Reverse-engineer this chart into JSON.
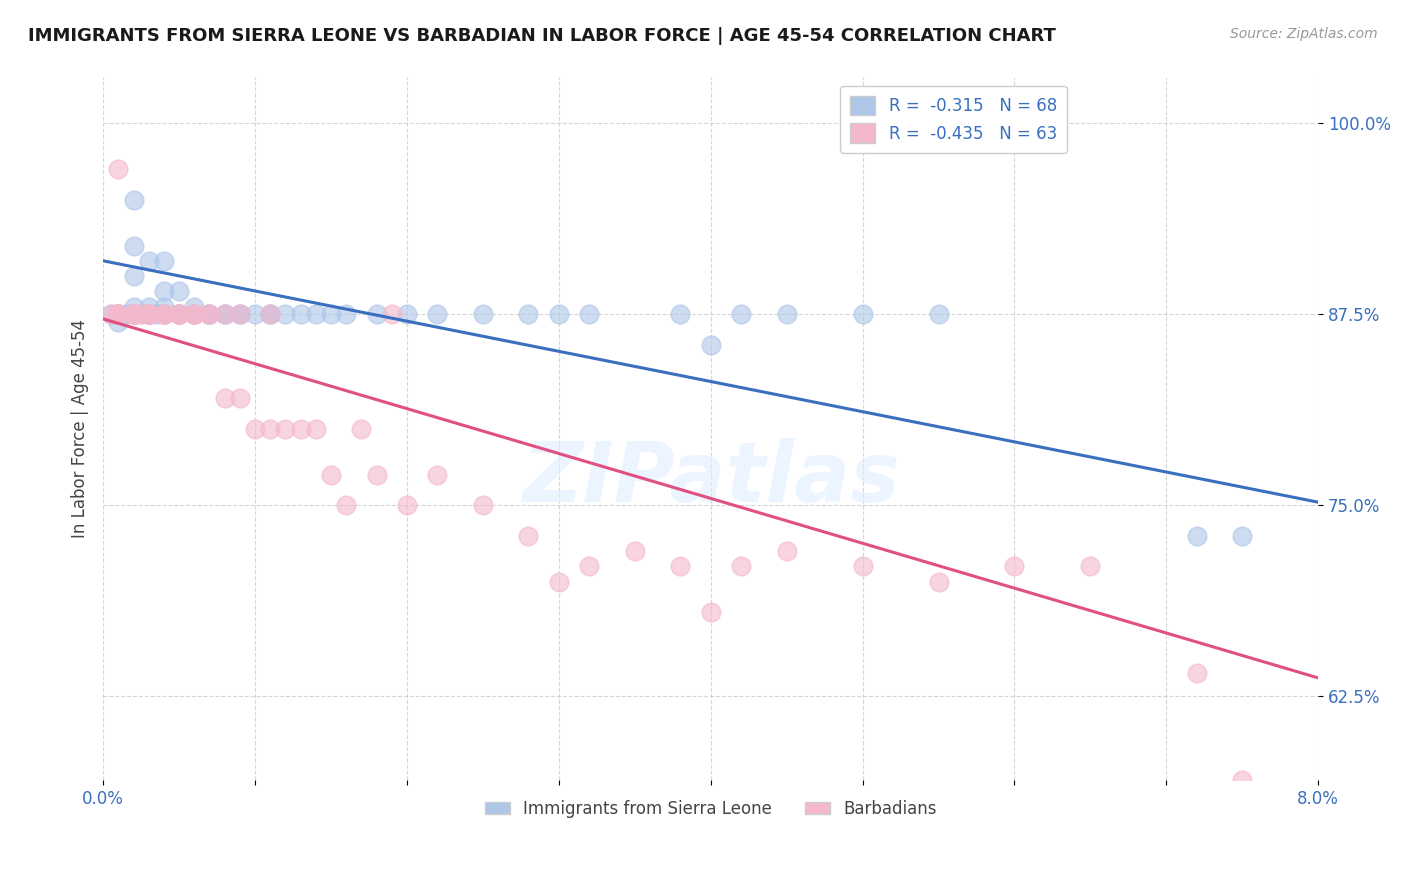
{
  "title": "IMMIGRANTS FROM SIERRA LEONE VS BARBADIAN IN LABOR FORCE | AGE 45-54 CORRELATION CHART",
  "source": "Source: ZipAtlas.com",
  "ylabel": "In Labor Force | Age 45-54",
  "x_min": 0.0,
  "x_max": 0.08,
  "y_min": 0.57,
  "y_max": 1.03,
  "x_ticks": [
    0.0,
    0.01,
    0.02,
    0.03,
    0.04,
    0.05,
    0.06,
    0.07,
    0.08
  ],
  "x_tick_labels": [
    "0.0%",
    "",
    "",
    "",
    "",
    "",
    "",
    "",
    "8.0%"
  ],
  "y_ticks": [
    0.625,
    0.75,
    0.875,
    1.0
  ],
  "y_tick_labels": [
    "62.5%",
    "75.0%",
    "87.5%",
    "100.0%"
  ],
  "legend_label_1": "Immigrants from Sierra Leone",
  "legend_label_2": "Barbadians",
  "blue_color": "#aec6e8",
  "pink_color": "#f4b8cc",
  "blue_line_color": "#3a6fbf",
  "pink_line_color": "#e05080",
  "blue_trend": [
    0.0,
    0.91,
    0.08,
    0.752
  ],
  "pink_trend": [
    0.0,
    0.872,
    0.08,
    0.637
  ],
  "blue_scatter_x": [
    0.0005,
    0.001,
    0.001,
    0.001,
    0.001,
    0.001,
    0.0015,
    0.002,
    0.002,
    0.002,
    0.002,
    0.002,
    0.002,
    0.002,
    0.0025,
    0.003,
    0.003,
    0.003,
    0.003,
    0.003,
    0.003,
    0.003,
    0.0035,
    0.004,
    0.004,
    0.004,
    0.004,
    0.004,
    0.004,
    0.005,
    0.005,
    0.005,
    0.005,
    0.005,
    0.006,
    0.006,
    0.006,
    0.006,
    0.007,
    0.007,
    0.007,
    0.008,
    0.008,
    0.009,
    0.009,
    0.01,
    0.011,
    0.011,
    0.012,
    0.013,
    0.014,
    0.015,
    0.016,
    0.018,
    0.02,
    0.022,
    0.025,
    0.028,
    0.03,
    0.032,
    0.038,
    0.04,
    0.042,
    0.045,
    0.05,
    0.055,
    0.072,
    0.075
  ],
  "blue_scatter_y": [
    0.875,
    0.875,
    0.875,
    0.875,
    0.875,
    0.87,
    0.875,
    0.875,
    0.875,
    0.875,
    0.88,
    0.9,
    0.92,
    0.95,
    0.875,
    0.875,
    0.875,
    0.875,
    0.875,
    0.875,
    0.88,
    0.91,
    0.875,
    0.875,
    0.875,
    0.875,
    0.88,
    0.89,
    0.91,
    0.875,
    0.875,
    0.875,
    0.875,
    0.89,
    0.875,
    0.875,
    0.875,
    0.88,
    0.875,
    0.875,
    0.875,
    0.875,
    0.875,
    0.875,
    0.875,
    0.875,
    0.875,
    0.875,
    0.875,
    0.875,
    0.875,
    0.875,
    0.875,
    0.875,
    0.875,
    0.875,
    0.875,
    0.875,
    0.875,
    0.875,
    0.875,
    0.855,
    0.875,
    0.875,
    0.875,
    0.875,
    0.73,
    0.73
  ],
  "pink_scatter_x": [
    0.0005,
    0.001,
    0.001,
    0.001,
    0.001,
    0.001,
    0.001,
    0.002,
    0.002,
    0.002,
    0.002,
    0.002,
    0.002,
    0.0025,
    0.003,
    0.003,
    0.003,
    0.003,
    0.003,
    0.004,
    0.004,
    0.004,
    0.004,
    0.005,
    0.005,
    0.005,
    0.006,
    0.006,
    0.006,
    0.007,
    0.007,
    0.008,
    0.008,
    0.009,
    0.009,
    0.01,
    0.011,
    0.011,
    0.012,
    0.013,
    0.014,
    0.015,
    0.016,
    0.017,
    0.018,
    0.019,
    0.02,
    0.022,
    0.025,
    0.028,
    0.03,
    0.032,
    0.035,
    0.038,
    0.04,
    0.042,
    0.045,
    0.05,
    0.055,
    0.06,
    0.065,
    0.072,
    0.075
  ],
  "pink_scatter_y": [
    0.875,
    0.875,
    0.875,
    0.875,
    0.875,
    0.875,
    0.97,
    0.875,
    0.875,
    0.875,
    0.875,
    0.875,
    0.875,
    0.875,
    0.875,
    0.875,
    0.875,
    0.875,
    0.875,
    0.875,
    0.875,
    0.875,
    0.875,
    0.875,
    0.875,
    0.875,
    0.875,
    0.875,
    0.875,
    0.875,
    0.875,
    0.82,
    0.875,
    0.82,
    0.875,
    0.8,
    0.8,
    0.875,
    0.8,
    0.8,
    0.8,
    0.77,
    0.75,
    0.8,
    0.77,
    0.875,
    0.75,
    0.77,
    0.75,
    0.73,
    0.7,
    0.71,
    0.72,
    0.71,
    0.68,
    0.71,
    0.72,
    0.71,
    0.7,
    0.71,
    0.71,
    0.64,
    0.57
  ]
}
